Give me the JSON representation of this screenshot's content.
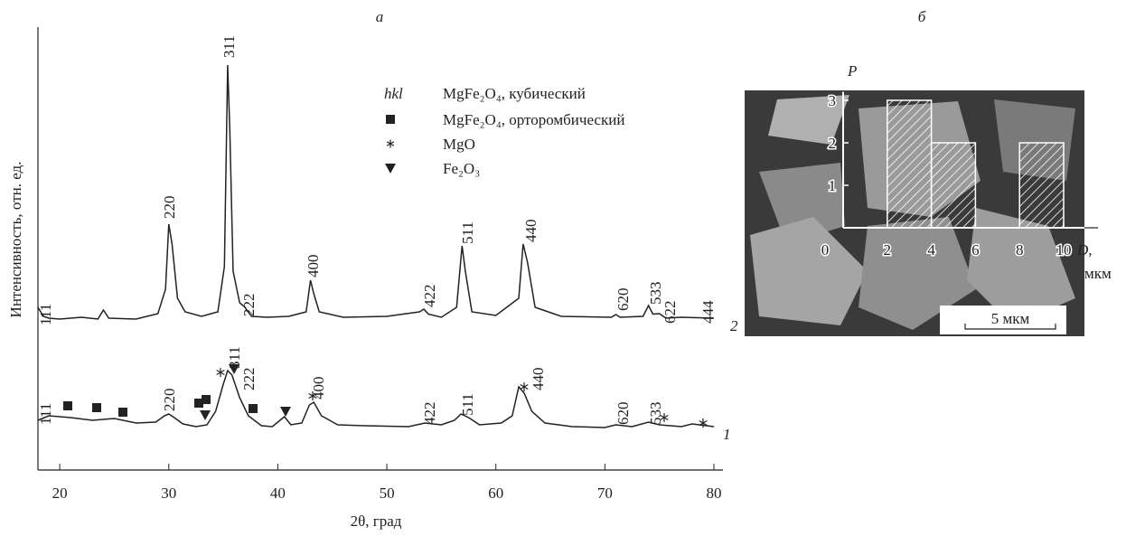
{
  "chart_data": [
    {
      "type": "line",
      "panel_label": "а",
      "xlabel": "2θ, град",
      "ylabel": "Интенсивность, отн. ед.",
      "xlim": [
        18,
        80
      ],
      "xticks": [
        20,
        30,
        40,
        50,
        60,
        70,
        80
      ],
      "ylim": [
        0,
        100
      ],
      "legend": {
        "title": "hkl",
        "entries": [
          "MgFe₂O₄, кубический",
          "MgFe₂O₄, орторомбический",
          "MgO",
          "Fe₂O₃"
        ]
      },
      "series": [
        {
          "name": "2",
          "color": "#222222",
          "x": [
            18,
            18.5,
            19,
            20,
            22,
            23.5,
            24,
            24.5,
            27,
            29,
            29.7,
            30,
            30.3,
            30.8,
            31.5,
            33,
            34.5,
            35.1,
            35.4,
            35.6,
            35.9,
            36.5,
            37,
            37.2,
            37.6,
            39,
            41,
            42.6,
            43,
            43.3,
            43.8,
            46,
            50,
            53,
            53.4,
            53.8,
            55,
            56.4,
            56.9,
            57.2,
            57.8,
            60,
            62.1,
            62.5,
            62.9,
            63.6,
            66,
            70.6,
            71,
            71.4,
            73.5,
            74,
            74.4,
            75,
            75.6,
            77,
            80
          ],
          "values": [
            36,
            34,
            33.6,
            33.4,
            33.8,
            33.4,
            35.4,
            33.6,
            33.4,
            34.6,
            40,
            54.4,
            50,
            38,
            35,
            34,
            35,
            45,
            89.6,
            75,
            44,
            37,
            36,
            35.2,
            34,
            33.8,
            34,
            35,
            42,
            39,
            35,
            33.8,
            34,
            35,
            35.6,
            34.5,
            33.8,
            36,
            49.6,
            44,
            35,
            34.2,
            38,
            50,
            46,
            36,
            34,
            33.8,
            34.4,
            33.8,
            34,
            36.4,
            34.5,
            34.6,
            33.6,
            33.8,
            33.6
          ],
          "peak_labels": [
            "111",
            "220",
            "311",
            "222",
            "400",
            "422",
            "511",
            "440",
            "620",
            "533",
            "622",
            "444"
          ]
        },
        {
          "name": "1",
          "color": "#222222",
          "x": [
            18,
            19,
            21,
            23,
            25,
            27,
            28.8,
            29.6,
            30,
            30.5,
            31.3,
            32.5,
            33.5,
            34.3,
            35,
            35.4,
            35.8,
            36.5,
            37.3,
            38.5,
            39.5,
            40.2,
            40.6,
            41.2,
            42.2,
            42.9,
            43.3,
            44,
            45.5,
            48,
            52,
            53.5,
            55,
            56.2,
            56.8,
            57.5,
            58.5,
            60.5,
            61.5,
            62.1,
            62.6,
            63.3,
            64.5,
            67,
            70,
            71,
            72.5,
            74,
            75,
            77,
            78,
            80
          ],
          "values": [
            11,
            12,
            11.6,
            11,
            11.4,
            10.4,
            10.6,
            12,
            12.4,
            11.6,
            10.2,
            9.6,
            10,
            13,
            19,
            22,
            21,
            16,
            12,
            9.8,
            9.6,
            11,
            11.8,
            10,
            10.4,
            14.4,
            15,
            12,
            10,
            9.8,
            9.6,
            10.4,
            10,
            11,
            12.4,
            11.6,
            10,
            10.4,
            12,
            18.4,
            17,
            13,
            10.4,
            9.6,
            9.4,
            10,
            9.6,
            10.6,
            10,
            9.6,
            10.2,
            9.6
          ],
          "peak_labels": [
            "111",
            "220",
            "311",
            "222",
            "400",
            "422",
            "511",
            "440",
            "620",
            "533"
          ]
        }
      ]
    },
    {
      "type": "histogram",
      "panel_label": "б",
      "ylabel": "P",
      "xlabel": "D,",
      "xunit": "мкм",
      "scale_bar": "5 мкм",
      "bins": [
        2,
        4,
        6,
        8,
        10
      ],
      "values": [
        3,
        2,
        0,
        2
      ],
      "color": "#ffffff",
      "xlim": [
        0,
        10
      ],
      "xticks": [
        0,
        2,
        4,
        6,
        8,
        10
      ],
      "ylim": [
        0,
        3.2
      ],
      "yticks": [
        1,
        2,
        3
      ]
    }
  ]
}
